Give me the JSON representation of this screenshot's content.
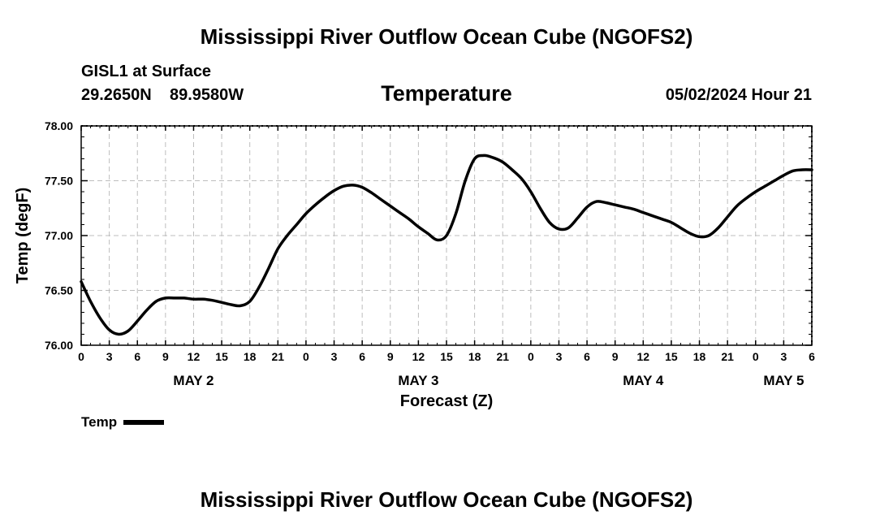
{
  "header": {
    "title": "Mississippi River Outflow Ocean Cube (NGOFS2)",
    "station_name": "GISL1 at Surface",
    "latitude": "29.2650N",
    "longitude": "89.9580W",
    "chart_title": "Temperature",
    "datetime": "05/02/2024 Hour 21"
  },
  "legend": {
    "label": "Temp"
  },
  "footer": {
    "title": "Mississippi River Outflow Ocean Cube (NGOFS2)"
  },
  "chart_data": {
    "type": "line",
    "title": "Temperature",
    "xlabel": "Forecast (Z)",
    "ylabel": "Temp (degF)",
    "xlim": [
      0,
      78
    ],
    "ylim": [
      76.0,
      78.0
    ],
    "grid": true,
    "x_tick_labels": [
      "0",
      "3",
      "6",
      "9",
      "12",
      "15",
      "18",
      "21",
      "0",
      "3",
      "6",
      "9",
      "12",
      "15",
      "18",
      "21",
      "0",
      "3",
      "6",
      "9",
      "12",
      "15",
      "18",
      "21",
      "0",
      "3",
      "6"
    ],
    "y_tick_labels": [
      "76.00",
      "76.50",
      "77.00",
      "77.50",
      "78.00"
    ],
    "day_labels": [
      {
        "label": "MAY 2",
        "x": 12
      },
      {
        "label": "MAY 3",
        "x": 36
      },
      {
        "label": "MAY 4",
        "x": 60
      },
      {
        "label": "MAY 5",
        "x": 75
      }
    ],
    "series": [
      {
        "name": "Temp",
        "x": [
          0,
          1,
          2,
          3,
          4,
          5,
          6,
          7,
          8,
          9,
          10,
          11,
          12,
          13,
          14,
          15,
          16,
          17,
          18,
          19,
          20,
          21,
          22,
          23,
          24,
          25,
          26,
          27,
          28,
          29,
          30,
          31,
          32,
          33,
          34,
          35,
          36,
          37,
          38,
          39,
          40,
          41,
          42,
          43,
          44,
          45,
          46,
          47,
          48,
          49,
          50,
          51,
          52,
          53,
          54,
          55,
          56,
          57,
          58,
          59,
          60,
          61,
          62,
          63,
          64,
          65,
          66,
          67,
          68,
          69,
          70,
          71,
          72,
          73,
          74,
          75,
          76,
          77,
          78
        ],
        "values": [
          76.58,
          76.4,
          76.25,
          76.14,
          76.1,
          76.13,
          76.22,
          76.32,
          76.4,
          76.43,
          76.43,
          76.43,
          76.42,
          76.42,
          76.41,
          76.39,
          76.37,
          76.36,
          76.4,
          76.53,
          76.7,
          76.88,
          77.0,
          77.1,
          77.2,
          77.28,
          77.35,
          77.41,
          77.45,
          77.46,
          77.44,
          77.39,
          77.33,
          77.27,
          77.21,
          77.15,
          77.08,
          77.02,
          76.96,
          77.0,
          77.2,
          77.5,
          77.7,
          77.73,
          77.71,
          77.67,
          77.6,
          77.52,
          77.4,
          77.25,
          77.12,
          77.06,
          77.07,
          77.16,
          77.26,
          77.31,
          77.3,
          77.28,
          77.26,
          77.24,
          77.21,
          77.18,
          77.15,
          77.12,
          77.07,
          77.02,
          76.99,
          77.0,
          77.07,
          77.17,
          77.27,
          77.34,
          77.4,
          77.45,
          77.5,
          77.55,
          77.59,
          77.6,
          77.6
        ]
      }
    ]
  }
}
